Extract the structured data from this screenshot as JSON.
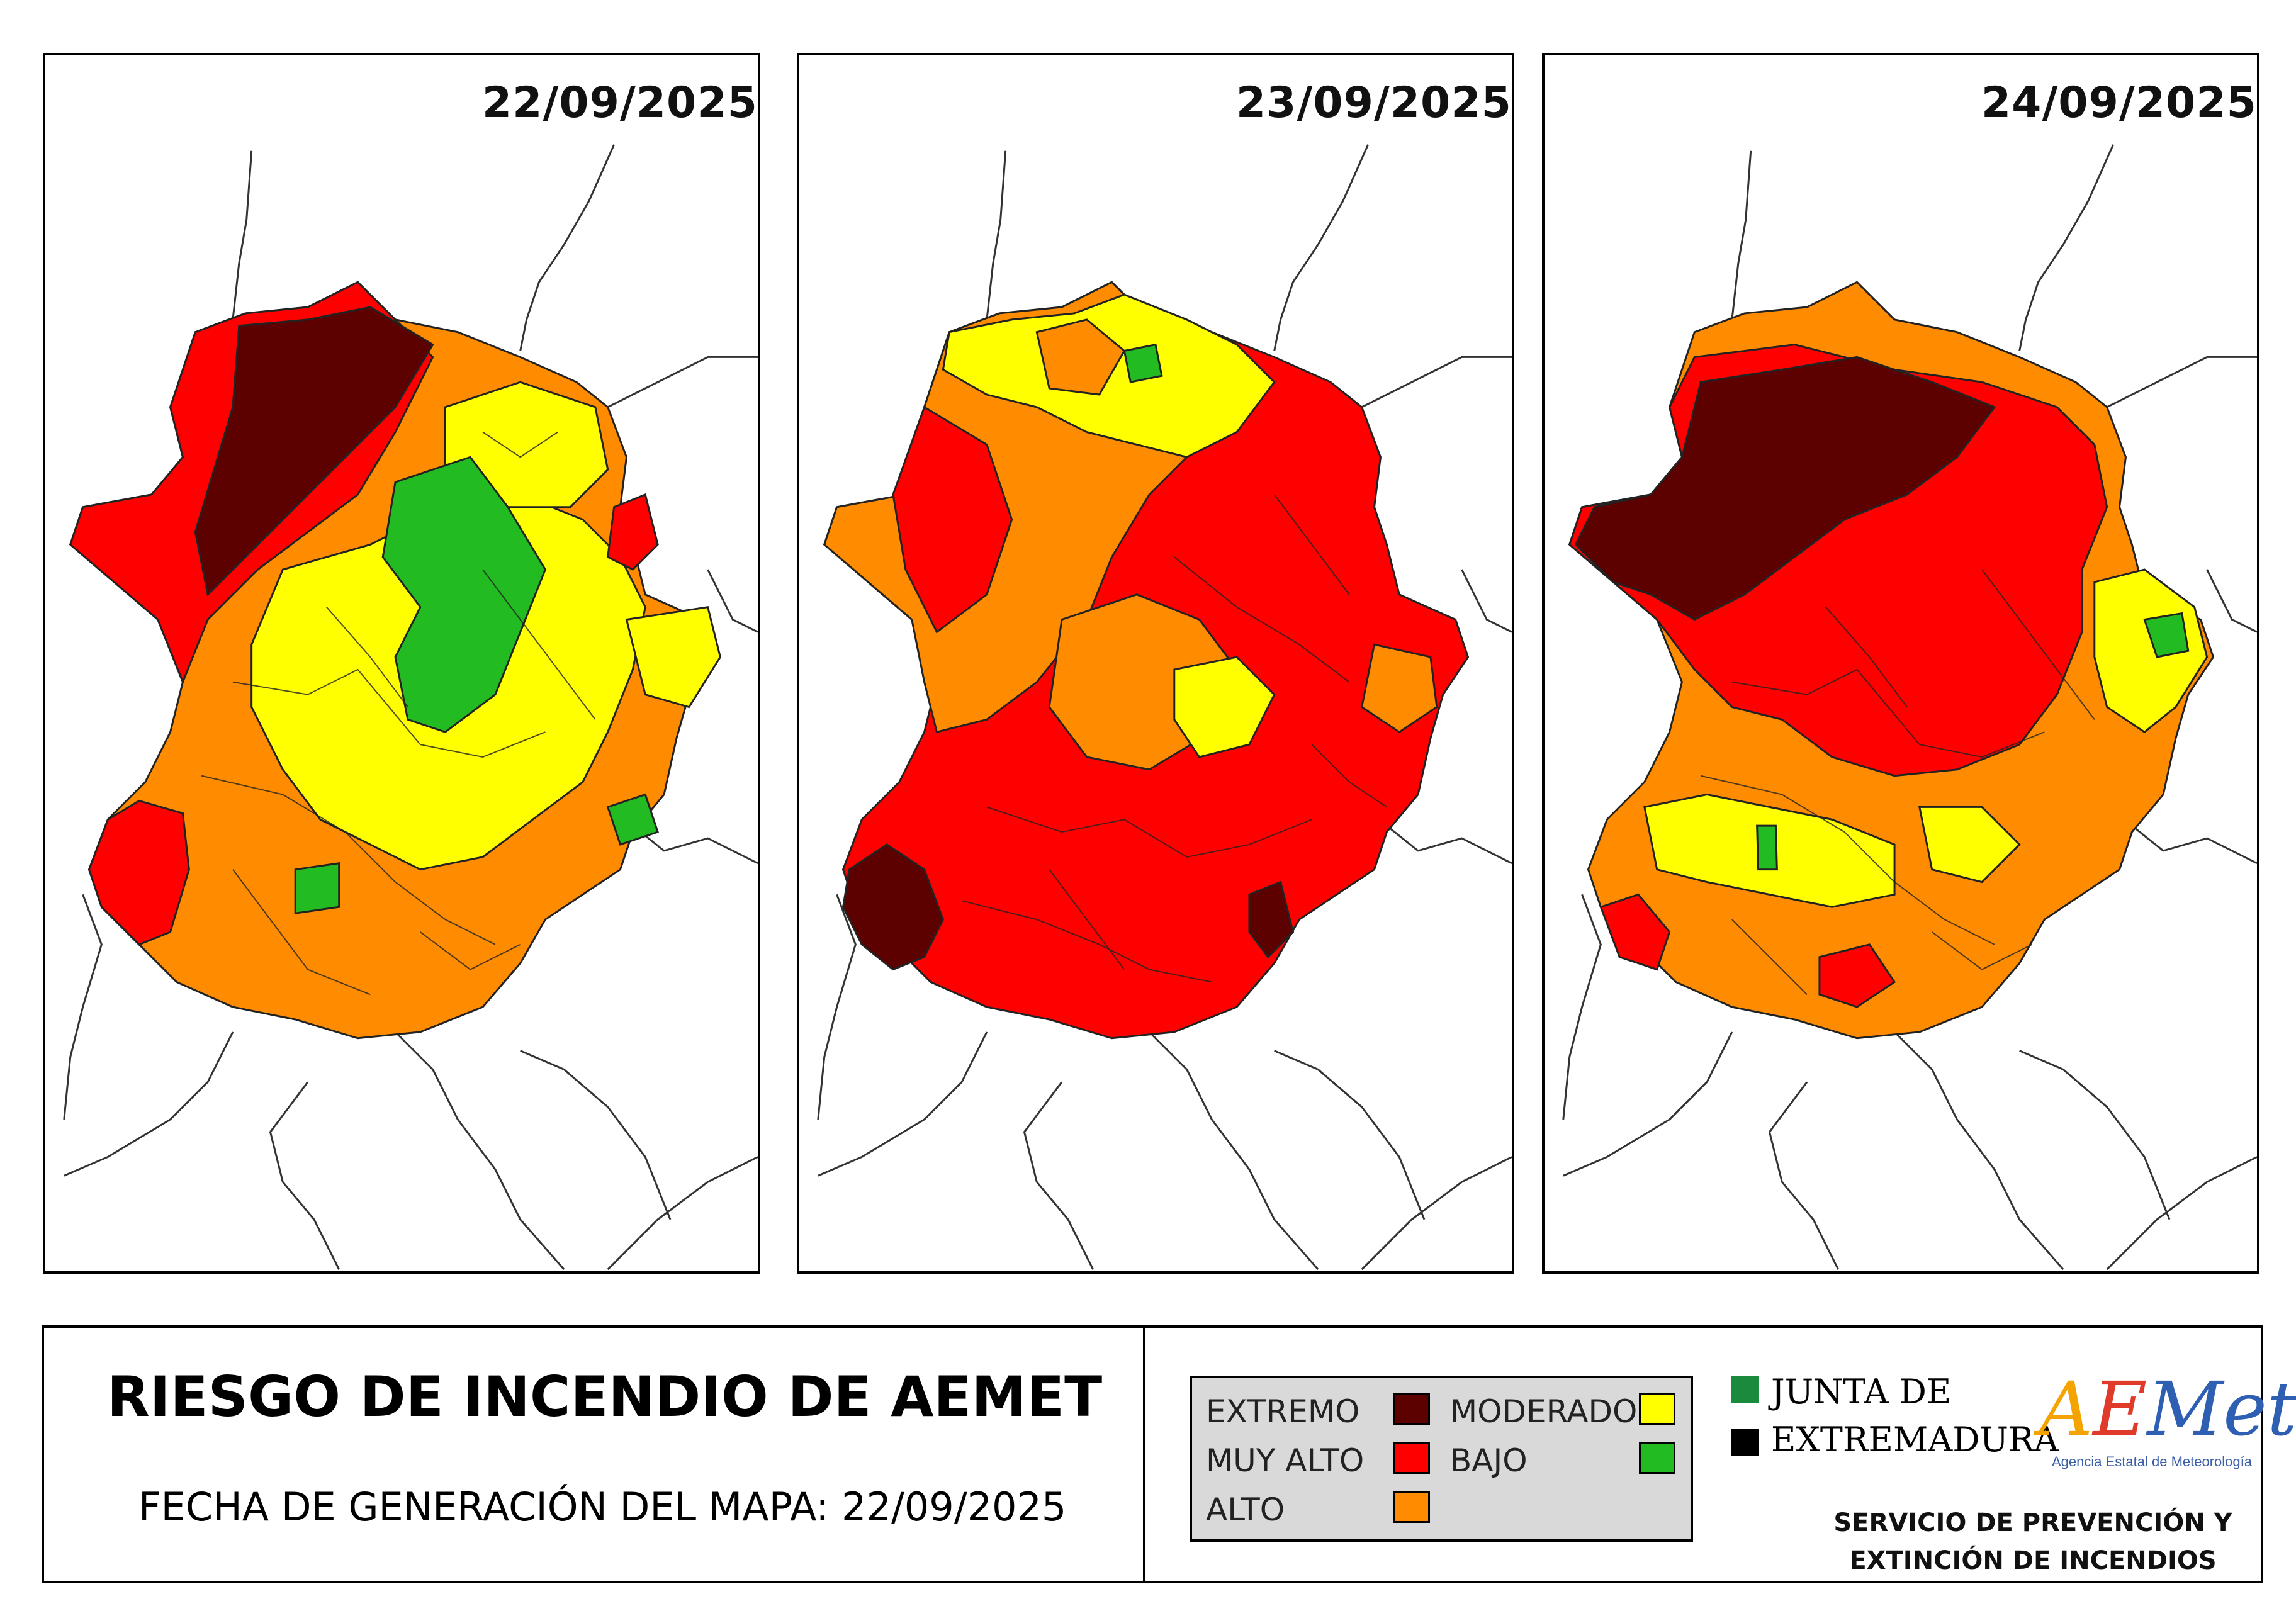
{
  "maps": [
    {
      "date": "22/09/2025"
    },
    {
      "date": "23/09/2025"
    },
    {
      "date": "24/09/2025"
    }
  ],
  "footer": {
    "title": "RIESGO DE INCENDIO DE AEMET",
    "generation": "FECHA DE GENERACIÓN DEL MAPA: 22/09/2025"
  },
  "legend": {
    "items": [
      {
        "label": "EXTREMO",
        "color": "#5c0000"
      },
      {
        "label": "MUY ALTO",
        "color": "#ff0000"
      },
      {
        "label": "ALTO",
        "color": "#ff8c00"
      },
      {
        "label": "MODERADO",
        "color": "#ffff00"
      },
      {
        "label": "BAJO",
        "color": "#22bb22"
      }
    ]
  },
  "junta": {
    "line1": "JUNTA DE",
    "line2": "EXTREMADURA",
    "green": "#1a8a3c",
    "black": "#000000"
  },
  "aemet": {
    "logo_text": "AEMet",
    "subtitle": "Agencia Estatal de Meteorología"
  },
  "service": {
    "line1": "SERVICIO DE PREVENCIÓN Y",
    "line2": "EXTINCIÓN DE INCENDIOS"
  }
}
